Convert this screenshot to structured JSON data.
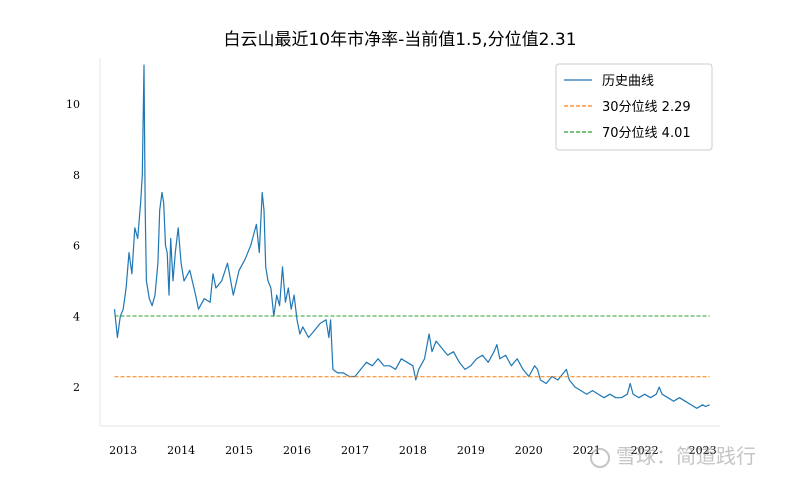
{
  "chart_data": {
    "type": "line",
    "title": "白云山最近10年市净率-当前值1.5,分位值2.31",
    "xlabel": "",
    "ylabel": "",
    "xlim": [
      2012.6,
      2023.3
    ],
    "ylim": [
      0.9,
      11.3
    ],
    "x_ticks": [
      2013,
      2014,
      2015,
      2016,
      2017,
      2018,
      2019,
      2020,
      2021,
      2022,
      2023
    ],
    "x_tick_labels": [
      "2013",
      "2014",
      "2015",
      "2016",
      "2017",
      "2018",
      "2019",
      "2020",
      "2021",
      "2022",
      "2023"
    ],
    "y_ticks": [
      2,
      4,
      6,
      8,
      10
    ],
    "y_tick_labels": [
      "2",
      "4",
      "6",
      "8",
      "10"
    ],
    "legend_position": "top-right",
    "grid": false,
    "series": [
      {
        "name": "历史曲线",
        "color": "#1f77b4",
        "style": "solid",
        "points": [
          [
            2012.85,
            4.2
          ],
          [
            2012.9,
            3.4
          ],
          [
            2012.95,
            4.0
          ],
          [
            2013.0,
            4.2
          ],
          [
            2013.05,
            4.8
          ],
          [
            2013.1,
            5.8
          ],
          [
            2013.15,
            5.2
          ],
          [
            2013.2,
            6.5
          ],
          [
            2013.25,
            6.2
          ],
          [
            2013.3,
            7.2
          ],
          [
            2013.33,
            8.0
          ],
          [
            2013.36,
            11.1
          ],
          [
            2013.38,
            7.0
          ],
          [
            2013.4,
            5.0
          ],
          [
            2013.45,
            4.5
          ],
          [
            2013.5,
            4.3
          ],
          [
            2013.55,
            4.6
          ],
          [
            2013.6,
            5.5
          ],
          [
            2013.63,
            7.0
          ],
          [
            2013.67,
            7.5
          ],
          [
            2013.7,
            7.2
          ],
          [
            2013.73,
            6.0
          ],
          [
            2013.76,
            5.8
          ],
          [
            2013.79,
            4.6
          ],
          [
            2013.82,
            6.2
          ],
          [
            2013.86,
            5.0
          ],
          [
            2013.9,
            5.8
          ],
          [
            2013.95,
            6.5
          ],
          [
            2014.0,
            5.5
          ],
          [
            2014.05,
            5.0
          ],
          [
            2014.15,
            5.3
          ],
          [
            2014.25,
            4.6
          ],
          [
            2014.3,
            4.2
          ],
          [
            2014.4,
            4.5
          ],
          [
            2014.5,
            4.4
          ],
          [
            2014.55,
            5.2
          ],
          [
            2014.6,
            4.8
          ],
          [
            2014.7,
            5.0
          ],
          [
            2014.8,
            5.5
          ],
          [
            2014.9,
            4.6
          ],
          [
            2015.0,
            5.3
          ],
          [
            2015.1,
            5.6
          ],
          [
            2015.2,
            6.0
          ],
          [
            2015.3,
            6.6
          ],
          [
            2015.35,
            5.8
          ],
          [
            2015.4,
            7.5
          ],
          [
            2015.43,
            7.0
          ],
          [
            2015.46,
            5.4
          ],
          [
            2015.5,
            5.0
          ],
          [
            2015.55,
            4.8
          ],
          [
            2015.6,
            4.0
          ],
          [
            2015.65,
            4.6
          ],
          [
            2015.7,
            4.3
          ],
          [
            2015.75,
            5.4
          ],
          [
            2015.8,
            4.4
          ],
          [
            2015.85,
            4.8
          ],
          [
            2015.9,
            4.2
          ],
          [
            2015.95,
            4.6
          ],
          [
            2016.0,
            3.9
          ],
          [
            2016.05,
            3.5
          ],
          [
            2016.1,
            3.7
          ],
          [
            2016.2,
            3.4
          ],
          [
            2016.3,
            3.6
          ],
          [
            2016.4,
            3.8
          ],
          [
            2016.5,
            3.9
          ],
          [
            2016.55,
            3.4
          ],
          [
            2016.58,
            3.9
          ],
          [
            2016.62,
            2.5
          ],
          [
            2016.7,
            2.4
          ],
          [
            2016.8,
            2.4
          ],
          [
            2016.9,
            2.3
          ],
          [
            2017.0,
            2.3
          ],
          [
            2017.1,
            2.5
          ],
          [
            2017.2,
            2.7
          ],
          [
            2017.3,
            2.6
          ],
          [
            2017.4,
            2.8
          ],
          [
            2017.5,
            2.6
          ],
          [
            2017.6,
            2.6
          ],
          [
            2017.7,
            2.5
          ],
          [
            2017.8,
            2.8
          ],
          [
            2017.9,
            2.7
          ],
          [
            2018.0,
            2.6
          ],
          [
            2018.05,
            2.2
          ],
          [
            2018.1,
            2.5
          ],
          [
            2018.2,
            2.8
          ],
          [
            2018.28,
            3.5
          ],
          [
            2018.33,
            3.0
          ],
          [
            2018.4,
            3.3
          ],
          [
            2018.5,
            3.1
          ],
          [
            2018.6,
            2.9
          ],
          [
            2018.7,
            3.0
          ],
          [
            2018.8,
            2.7
          ],
          [
            2018.9,
            2.5
          ],
          [
            2019.0,
            2.6
          ],
          [
            2019.1,
            2.8
          ],
          [
            2019.2,
            2.9
          ],
          [
            2019.3,
            2.7
          ],
          [
            2019.4,
            3.0
          ],
          [
            2019.45,
            3.2
          ],
          [
            2019.5,
            2.8
          ],
          [
            2019.6,
            2.9
          ],
          [
            2019.7,
            2.6
          ],
          [
            2019.8,
            2.8
          ],
          [
            2019.9,
            2.5
          ],
          [
            2020.0,
            2.3
          ],
          [
            2020.1,
            2.6
          ],
          [
            2020.15,
            2.5
          ],
          [
            2020.2,
            2.2
          ],
          [
            2020.3,
            2.1
          ],
          [
            2020.4,
            2.3
          ],
          [
            2020.5,
            2.2
          ],
          [
            2020.6,
            2.4
          ],
          [
            2020.65,
            2.5
          ],
          [
            2020.7,
            2.2
          ],
          [
            2020.8,
            2.0
          ],
          [
            2020.9,
            1.9
          ],
          [
            2021.0,
            1.8
          ],
          [
            2021.1,
            1.9
          ],
          [
            2021.2,
            1.8
          ],
          [
            2021.3,
            1.7
          ],
          [
            2021.4,
            1.8
          ],
          [
            2021.5,
            1.7
          ],
          [
            2021.6,
            1.7
          ],
          [
            2021.7,
            1.8
          ],
          [
            2021.75,
            2.1
          ],
          [
            2021.8,
            1.8
          ],
          [
            2021.9,
            1.7
          ],
          [
            2022.0,
            1.8
          ],
          [
            2022.1,
            1.7
          ],
          [
            2022.2,
            1.8
          ],
          [
            2022.25,
            2.0
          ],
          [
            2022.3,
            1.8
          ],
          [
            2022.4,
            1.7
          ],
          [
            2022.5,
            1.6
          ],
          [
            2022.6,
            1.7
          ],
          [
            2022.7,
            1.6
          ],
          [
            2022.8,
            1.5
          ],
          [
            2022.9,
            1.4
          ],
          [
            2023.0,
            1.5
          ],
          [
            2023.05,
            1.45
          ],
          [
            2023.12,
            1.5
          ]
        ]
      },
      {
        "name": "30分位线 2.29",
        "color": "#ff7f0e",
        "style": "dashed",
        "points": [
          [
            2012.85,
            2.29
          ],
          [
            2023.12,
            2.29
          ]
        ]
      },
      {
        "name": "70分位线 4.01",
        "color": "#2ca02c",
        "style": "dashed",
        "points": [
          [
            2012.85,
            4.01
          ],
          [
            2023.12,
            4.01
          ]
        ]
      }
    ]
  },
  "watermark": {
    "text": "雪球：简道践行"
  }
}
